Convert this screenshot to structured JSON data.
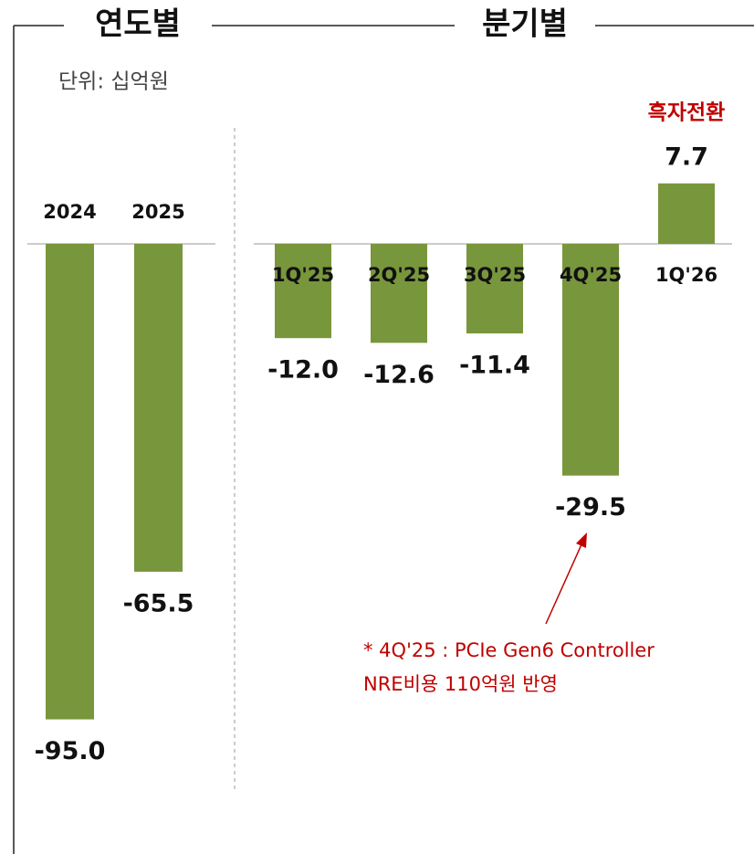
{
  "unit_label": "단위: 십억원",
  "chart_data": [
    {
      "type": "bar",
      "title": "연도별",
      "categories": [
        "2024",
        "2025"
      ],
      "values": [
        -95.0,
        -65.5
      ],
      "value_labels": [
        "-95.0",
        "-65.5"
      ],
      "color": "#78963c"
    },
    {
      "type": "bar",
      "title": "분기별",
      "categories": [
        "1Q'25",
        "2Q'25",
        "3Q'25",
        "4Q'25",
        "1Q'26"
      ],
      "values": [
        -12.0,
        -12.6,
        -11.4,
        -29.5,
        7.7
      ],
      "value_labels": [
        "-12.0",
        "-12.6",
        "-11.4",
        "-29.5",
        "7.7"
      ],
      "color": "#78963c",
      "annotations": [
        "흑자전환",
        "* 4Q'25 : PCIe Gen6 Controller",
        "NRE비용 110억원 반영"
      ]
    }
  ]
}
